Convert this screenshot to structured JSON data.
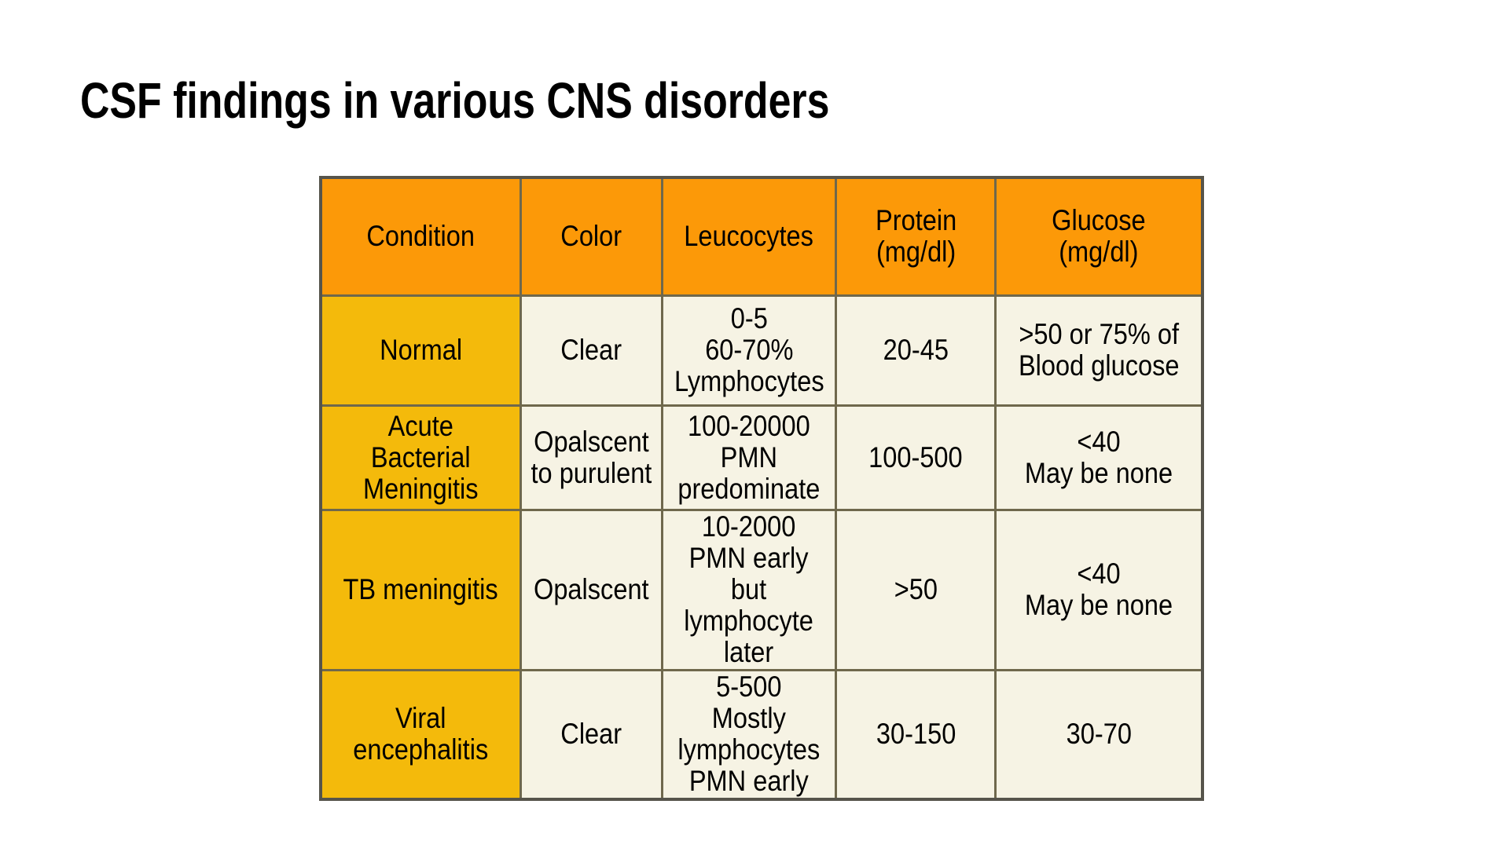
{
  "slide_title": "CSF findings in various CNS disorders",
  "colors": {
    "page_bg": "#FFFFFF",
    "text": "#000000",
    "header_bg": "#FC9908",
    "condition_bg": "#F4BA0B",
    "cell_bg": "#F6F3E4",
    "border_inner": "#6F684C",
    "border_outer": "#56544B"
  },
  "table": {
    "columns": [
      "Condition",
      "Color",
      "Leucocytes",
      "Protein\n(mg/dl)",
      "Glucose\n(mg/dl)"
    ],
    "rows": [
      {
        "condition": "Normal",
        "color": "Clear",
        "leucocytes": "0-5\n60-70%\nLymphocytes",
        "protein": "20-45",
        "glucose": ">50 or 75% of\nBlood glucose"
      },
      {
        "condition": "Acute Bacterial\nMeningitis",
        "color": "Opalscent\nto purulent",
        "leucocytes": "100-20000\nPMN\npredominate",
        "protein": "100-500",
        "glucose": "<40\nMay be none"
      },
      {
        "condition": "TB meningitis",
        "color": "Opalscent",
        "leucocytes": "10-2000\nPMN early\nbut\nlymphocyte\nlater",
        "protein": ">50",
        "glucose": "<40\nMay be none"
      },
      {
        "condition": "Viral encephalitis",
        "color": "Clear",
        "leucocytes": "5-500\nMostly\nlymphocytes\nPMN early",
        "protein": "30-150",
        "glucose": "30-70"
      }
    ]
  }
}
